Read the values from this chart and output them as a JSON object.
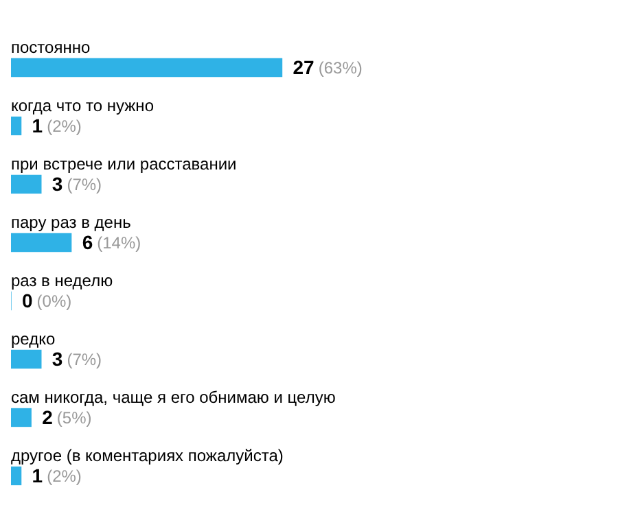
{
  "chart_data": {
    "type": "bar",
    "orientation": "horizontal",
    "categories": [
      "постоянно",
      "когда что то нужно",
      "при встрече или расставании",
      "пару раз в день",
      "раз в неделю",
      "редко",
      "сам никогда, чаще я его обнимаю и целую",
      "другое (в коментариях пожалуйста)"
    ],
    "values": [
      27,
      1,
      3,
      6,
      0,
      3,
      2,
      1
    ],
    "value_labels": [
      "27 (63%)",
      "1 (2%)",
      "3 (7%)",
      "6 (14%)",
      "0 (0%)",
      "3 (7%)",
      "2 (5%)",
      "1 (2%)"
    ],
    "color": "#2fb2e6"
  }
}
